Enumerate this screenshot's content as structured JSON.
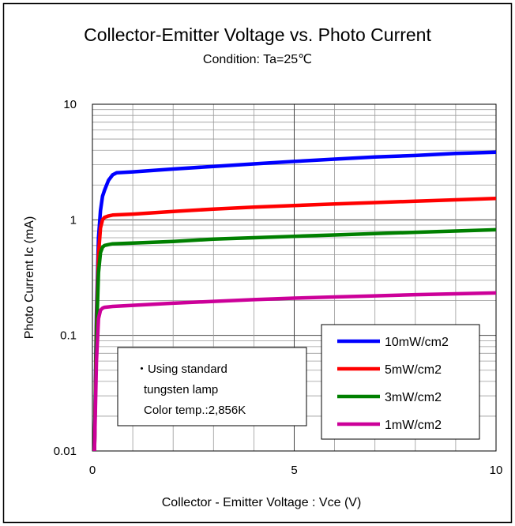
{
  "chart_data": {
    "type": "line",
    "title": "Collector-Emitter Voltage vs. Photo Current",
    "subtitle": "Condition: Ta=25℃",
    "xlabel": "Collector - Emitter Voltage : Vce (V)",
    "ylabel": "Photo Current  Ic (mA)",
    "xlim": [
      0,
      10
    ],
    "ylim": [
      0.01,
      10
    ],
    "yscale": "log",
    "grid": true,
    "x_ticks": [
      {
        "value": 0,
        "label": "0"
      },
      {
        "value": 5,
        "label": "5"
      },
      {
        "value": 10,
        "label": "10"
      }
    ],
    "y_ticks": [
      {
        "value": 0.01,
        "label": "0.01"
      },
      {
        "value": 0.1,
        "label": "0.1"
      },
      {
        "value": 1,
        "label": "1"
      },
      {
        "value": 10,
        "label": "10"
      }
    ],
    "legend_position": "bottom-right",
    "series": [
      {
        "name": "10mW/cm2",
        "color": "#0000ff",
        "x": [
          0.05,
          0.1,
          0.15,
          0.2,
          0.25,
          0.3,
          0.4,
          0.5,
          0.6,
          1,
          2,
          3,
          4,
          5,
          6,
          7,
          8,
          9,
          10
        ],
        "y": [
          0.01,
          0.15,
          0.7,
          1.2,
          1.6,
          1.8,
          2.2,
          2.45,
          2.55,
          2.6,
          2.75,
          2.9,
          3.05,
          3.2,
          3.35,
          3.5,
          3.6,
          3.75,
          3.85
        ]
      },
      {
        "name": "5mW/cm2",
        "color": "#ff0000",
        "x": [
          0.05,
          0.1,
          0.15,
          0.2,
          0.25,
          0.3,
          0.4,
          0.5,
          1,
          2,
          3,
          4,
          5,
          6,
          7,
          8,
          9,
          10
        ],
        "y": [
          0.01,
          0.12,
          0.5,
          0.85,
          1.0,
          1.05,
          1.08,
          1.1,
          1.12,
          1.18,
          1.24,
          1.29,
          1.33,
          1.37,
          1.41,
          1.45,
          1.49,
          1.53
        ]
      },
      {
        "name": "3mW/cm2",
        "color": "#008000",
        "x": [
          0.05,
          0.1,
          0.15,
          0.2,
          0.25,
          0.3,
          0.4,
          0.5,
          1,
          2,
          3,
          4,
          5,
          6,
          7,
          8,
          9,
          10
        ],
        "y": [
          0.01,
          0.1,
          0.35,
          0.52,
          0.58,
          0.6,
          0.61,
          0.62,
          0.63,
          0.65,
          0.68,
          0.7,
          0.72,
          0.74,
          0.76,
          0.78,
          0.8,
          0.82
        ]
      },
      {
        "name": "1mW/cm2",
        "color": "#cc0099",
        "x": [
          0.05,
          0.1,
          0.15,
          0.2,
          0.25,
          0.3,
          0.5,
          1,
          2,
          3,
          4,
          5,
          6,
          7,
          8,
          9,
          10
        ],
        "y": [
          0.01,
          0.06,
          0.14,
          0.165,
          0.172,
          0.175,
          0.178,
          0.182,
          0.19,
          0.197,
          0.204,
          0.21,
          0.215,
          0.22,
          0.225,
          0.229,
          0.233
        ]
      }
    ],
    "annotation": {
      "lines": [
        "・Using standard",
        "tungsten lamp",
        "Color temp.:2,856K"
      ]
    }
  }
}
